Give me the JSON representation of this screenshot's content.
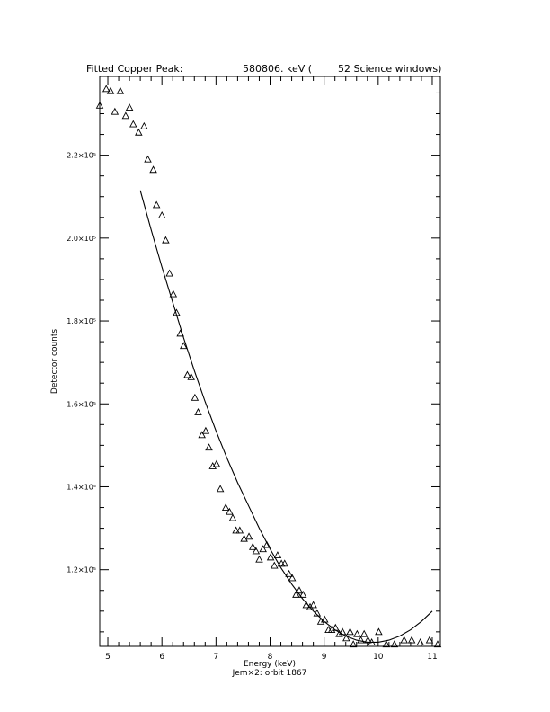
{
  "chart_data": {
    "type": "scatter",
    "title": {
      "prefix": "Fitted Copper Peak:",
      "value": "580806. keV (",
      "suffix": "52 Science windows)"
    },
    "xlabel": "Energy (keV)",
    "subtitle": "Jem×2: orbit 1867",
    "ylabel": "Detector counts",
    "xlim": [
      4.85,
      11.15
    ],
    "ylim": [
      101500,
      239000
    ],
    "x_ticks": [
      5,
      6,
      7,
      8,
      9,
      10,
      11
    ],
    "y_ticks": [
      {
        "value": 120000,
        "label": "1.2×10⁵"
      },
      {
        "value": 140000,
        "label": "1.4×10⁵"
      },
      {
        "value": 160000,
        "label": "1.6×10⁵"
      },
      {
        "value": 180000,
        "label": "1.8×10⁵"
      },
      {
        "value": 200000,
        "label": "2.0×10⁵"
      },
      {
        "value": 220000,
        "label": "2.2×10⁵"
      }
    ],
    "series": [
      {
        "marker": "triangle",
        "x": [
          4.85,
          4.97,
          5.05,
          5.13,
          5.23,
          5.33,
          5.4,
          5.47,
          5.57,
          5.67,
          5.74,
          5.84,
          5.9,
          6.0,
          6.07,
          6.14,
          6.21,
          6.27,
          6.34,
          6.4,
          6.47,
          6.54,
          6.61,
          6.67,
          6.74,
          6.81,
          6.87,
          6.94,
          7.01,
          7.08,
          7.18,
          7.25,
          7.31,
          7.37,
          7.44,
          7.52,
          7.61,
          7.68,
          7.74,
          7.8,
          7.87,
          7.94,
          8.01,
          8.08,
          8.14,
          8.21,
          8.27,
          8.35,
          8.41,
          8.48,
          8.54,
          8.61,
          8.67,
          8.74,
          8.8,
          8.87,
          8.94,
          9.01,
          9.08,
          9.14,
          9.21,
          9.28,
          9.34,
          9.41,
          9.48,
          9.54,
          9.61,
          9.68,
          9.74,
          9.81,
          9.88,
          10.01,
          10.15,
          10.3,
          10.48,
          10.62,
          10.78,
          10.95,
          11.1
        ],
        "y": [
          232000,
          236000,
          235500,
          230500,
          235500,
          229500,
          231500,
          227500,
          225500,
          227000,
          219000,
          216500,
          208000,
          205500,
          199500,
          191500,
          186500,
          182000,
          177000,
          174000,
          167000,
          166500,
          161500,
          158000,
          152500,
          153500,
          149500,
          145000,
          145500,
          139500,
          135000,
          134000,
          132500,
          129500,
          129500,
          127500,
          128000,
          125500,
          124500,
          122500,
          125000,
          126000,
          123000,
          121000,
          123500,
          121500,
          121500,
          119000,
          118000,
          114000,
          115000,
          114000,
          111500,
          111000,
          111500,
          109500,
          107500,
          108000,
          105500,
          105500,
          106000,
          104500,
          105000,
          103500,
          105000,
          102000,
          104500,
          103000,
          104500,
          103000,
          102500,
          105000,
          102000,
          102000,
          103000,
          103000,
          102500,
          103000,
          102000
        ]
      },
      {
        "marker": "line",
        "x": [
          5.6,
          5.8,
          6.0,
          6.2,
          6.4,
          6.6,
          6.8,
          7.0,
          7.2,
          7.4,
          7.6,
          7.8,
          8.0,
          8.2,
          8.4,
          8.6,
          8.8,
          9.0,
          9.2,
          9.4,
          9.6,
          9.8,
          10.0,
          10.2,
          10.4,
          10.6,
          10.8,
          11.0
        ],
        "y": [
          211500,
          202000,
          193000,
          184500,
          176000,
          168000,
          160500,
          153500,
          147000,
          141000,
          135500,
          130000,
          125000,
          120500,
          116500,
          113000,
          110000,
          107500,
          105500,
          104000,
          103000,
          102500,
          102500,
          103000,
          104000,
          105500,
          107500,
          110000
        ]
      }
    ]
  }
}
